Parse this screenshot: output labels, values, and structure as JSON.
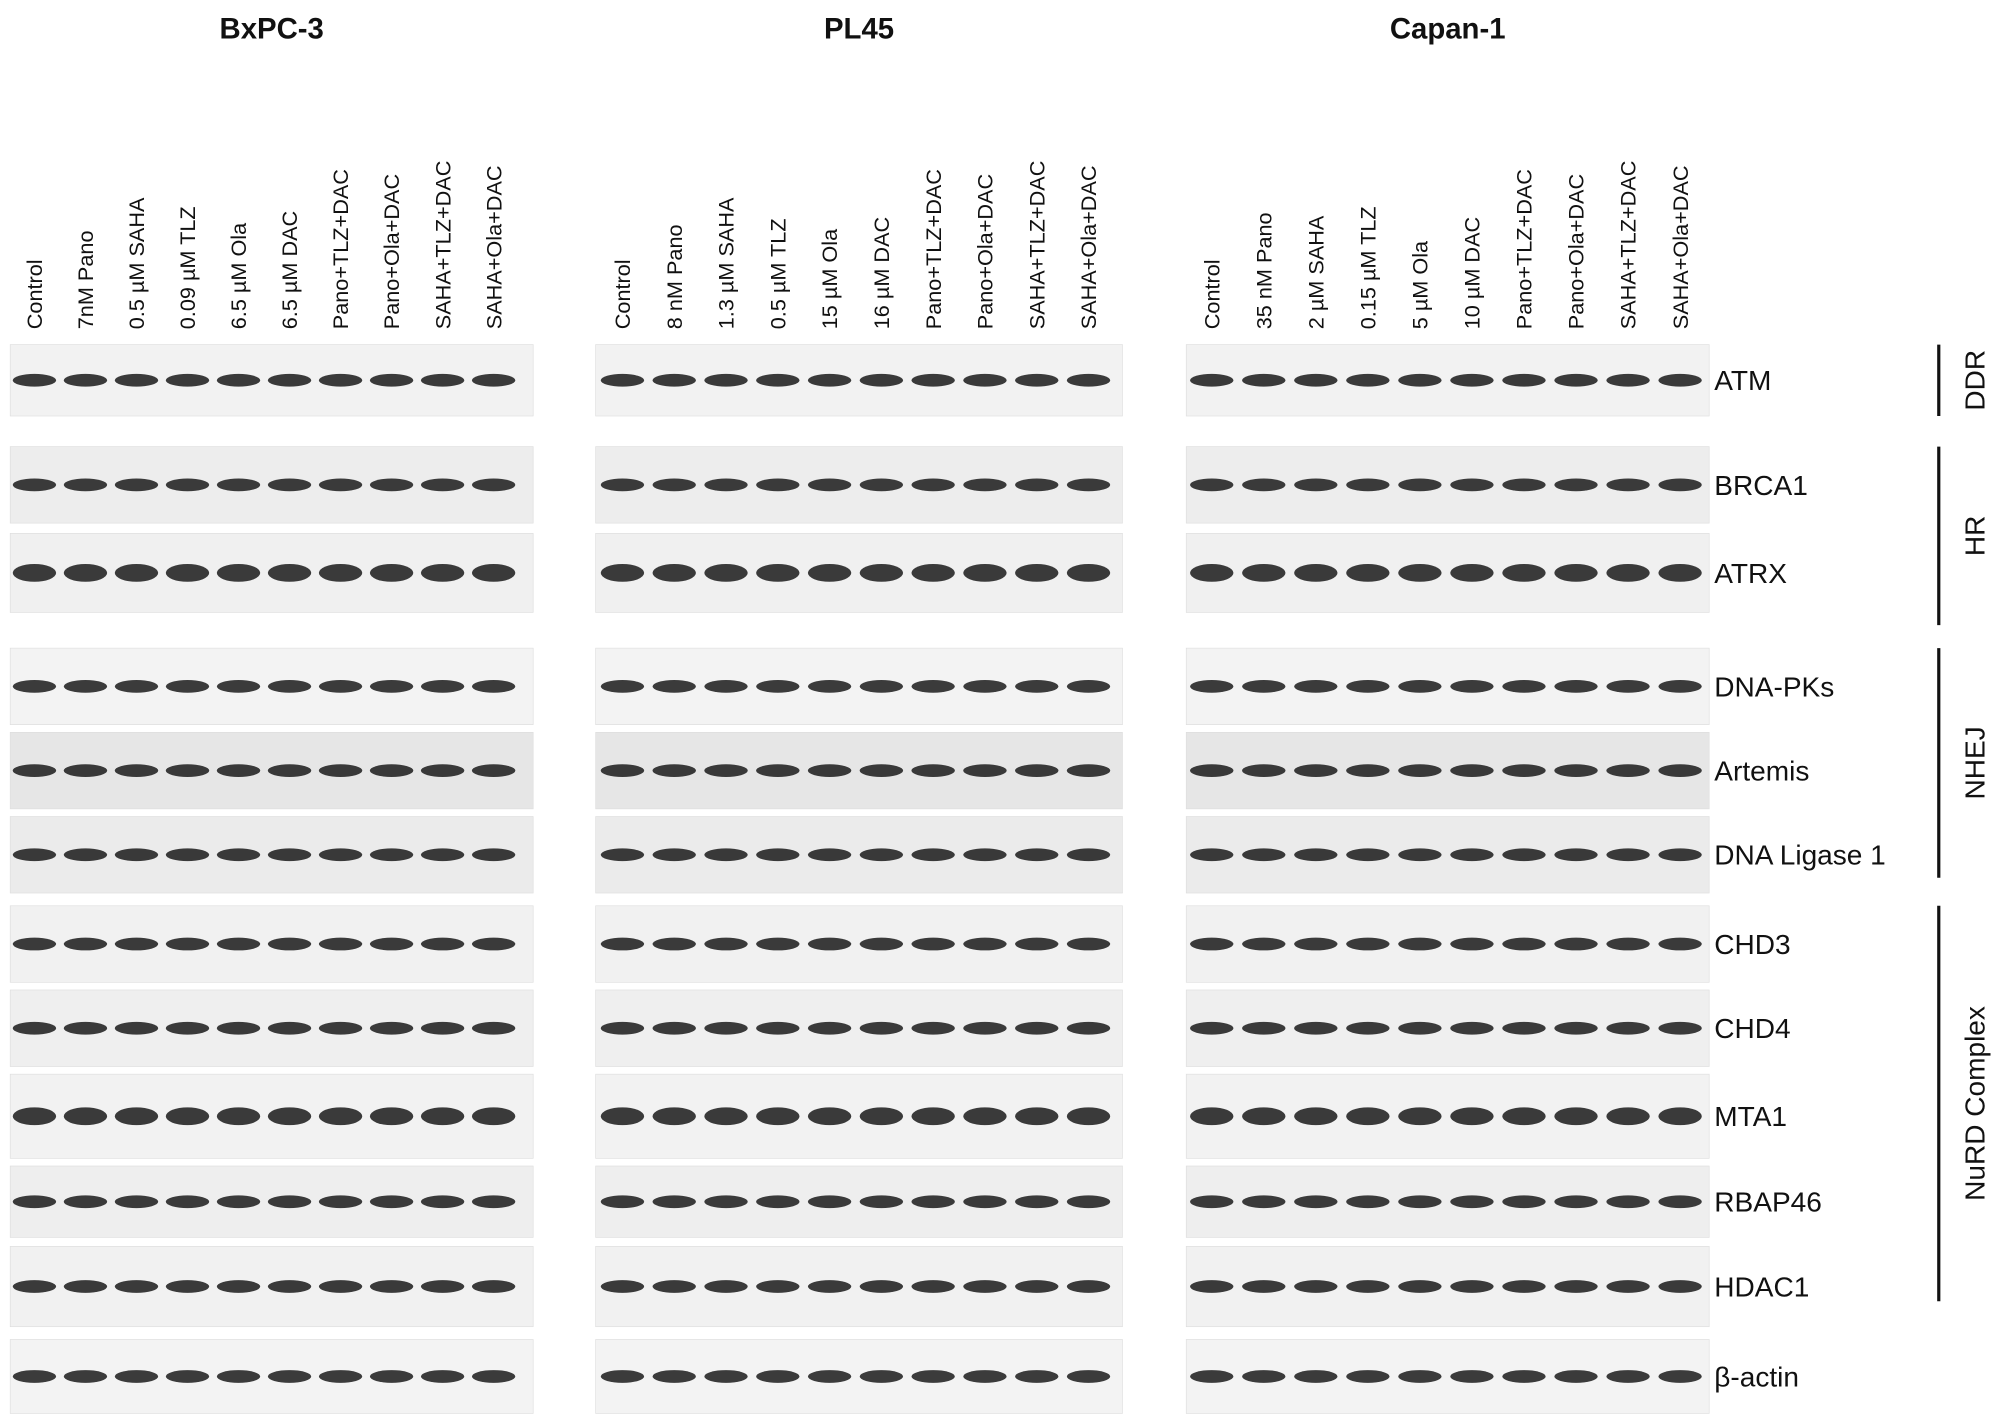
{
  "panels": [
    {
      "title": "BxPC-3",
      "lanes": [
        "Control",
        "7nM Pano",
        "0.5 µM SAHA",
        "0.09 µM TLZ",
        "6.5 µM Ola",
        "6.5 µM DAC",
        "Pano+TLZ+DAC",
        "Pano+Ola+DAC",
        "SAHA+TLZ+DAC",
        "SAHA+Ola+DAC"
      ]
    },
    {
      "title": "PL45",
      "lanes": [
        "Control",
        "8 nM Pano",
        "1.3 µM SAHA",
        "0.5 µM TLZ",
        "15 µM Ola",
        "16 µM DAC",
        "Pano+TLZ+DAC",
        "Pano+Ola+DAC",
        "SAHA+TLZ+DAC",
        "SAHA+Ola+DAC"
      ]
    },
    {
      "title": "Capan-1",
      "lanes": [
        "Control",
        "35 nM Pano",
        "2 µM SAHA",
        "0.15 µM TLZ",
        "5 µM Ola",
        "10 µM DAC",
        "Pano+TLZ+DAC",
        "Pano+Ola+DAC",
        "SAHA+TLZ+DAC",
        "SAHA+Ola+DAC"
      ]
    }
  ],
  "proteins": [
    "ATM",
    "BRCA1",
    "ATRX",
    "DNA-PKs",
    "Artemis",
    "DNA Ligase 1",
    "CHD3",
    "CHD4",
    "MTA1",
    "RBAP46",
    "HDAC1",
    "β-actin"
  ],
  "groups": [
    "DDR",
    "HR",
    "NHEJ",
    "NuRD Complex"
  ]
}
